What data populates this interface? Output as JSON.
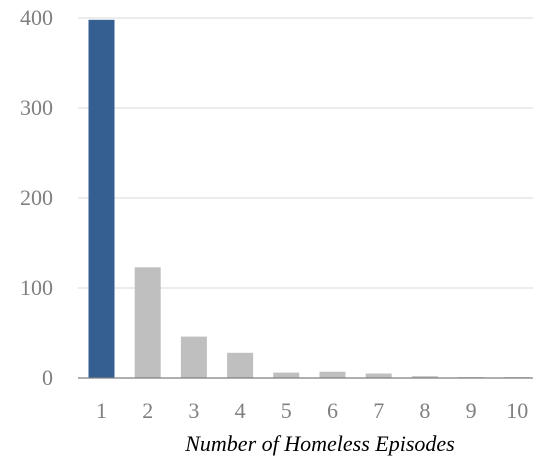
{
  "chart_data": {
    "type": "bar",
    "title": "",
    "xlabel": "Number of Homeless Episodes",
    "ylabel": "",
    "categories": [
      "1",
      "2",
      "3",
      "4",
      "5",
      "6",
      "7",
      "8",
      "9",
      "10"
    ],
    "values": [
      398,
      123,
      46,
      28,
      6,
      7,
      5,
      2,
      1,
      1
    ],
    "ylim": [
      0,
      400
    ],
    "yticks": [
      0,
      100,
      200,
      300,
      400
    ],
    "grid": true,
    "legend": "none",
    "colors": {
      "highlight": "#355f91",
      "bar": "#bfbfbf",
      "grid": "#d9d9d9",
      "axis": "#7f7f7f"
    },
    "highlight_index": 0
  }
}
